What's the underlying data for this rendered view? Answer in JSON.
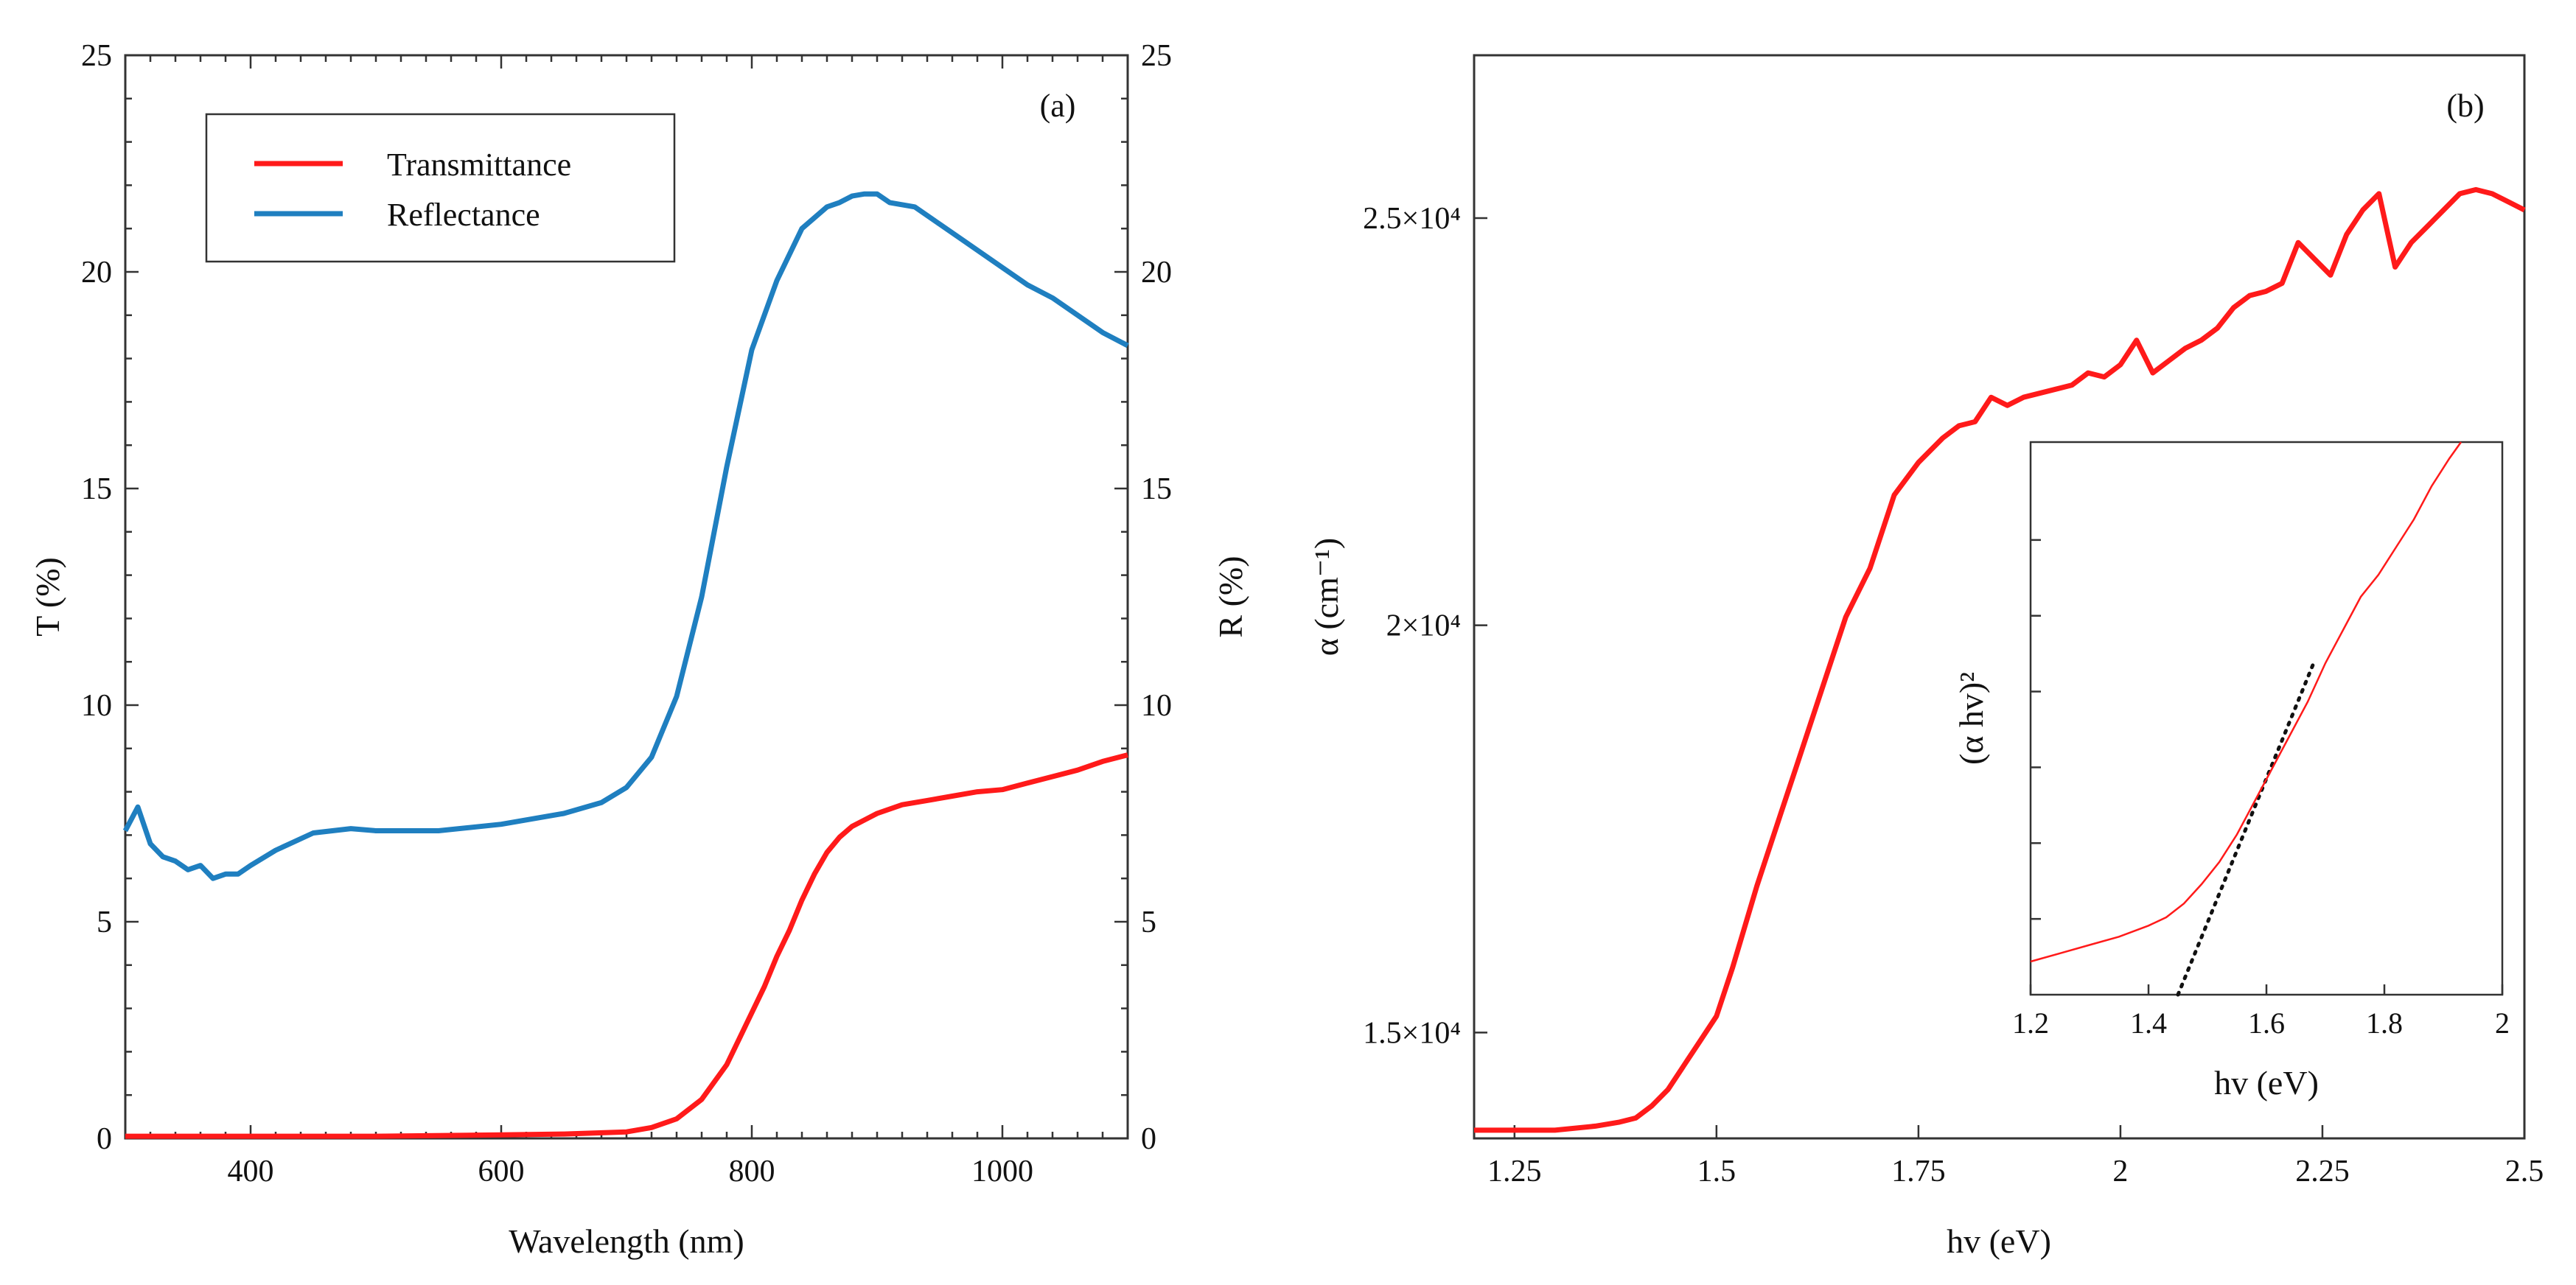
{
  "colors": {
    "transmittance": "#ff1a1a",
    "reflectance": "#1f7fc0",
    "frame": "#333333",
    "inset_fit": "#111111"
  },
  "chart_data": [
    {
      "id": "a",
      "type": "line",
      "panel_label": "(a)",
      "xlabel": "Wavelength (nm)",
      "ylabel_left": "T (%)",
      "ylabel_right": "R (%)",
      "xlim": [
        300,
        1100
      ],
      "ylim_left": [
        0,
        25
      ],
      "ylim_right": [
        0,
        25
      ],
      "xticks": [
        400,
        600,
        800,
        1000
      ],
      "yticks_left": [
        0,
        5,
        10,
        15,
        20,
        25
      ],
      "yticks_right": [
        0,
        5,
        10,
        15,
        20,
        25
      ],
      "legend": {
        "position": "top-left",
        "entries": [
          "Transmittance",
          "Reflectance"
        ]
      },
      "series": [
        {
          "name": "Transmittance",
          "axis": "left",
          "x": [
            300,
            400,
            500,
            600,
            650,
            700,
            720,
            740,
            760,
            780,
            790,
            800,
            810,
            820,
            830,
            840,
            850,
            860,
            870,
            880,
            890,
            900,
            920,
            940,
            960,
            980,
            1000,
            1020,
            1040,
            1060,
            1080,
            1100
          ],
          "y": [
            0.05,
            0.05,
            0.05,
            0.08,
            0.1,
            0.15,
            0.25,
            0.45,
            0.9,
            1.7,
            2.3,
            2.9,
            3.5,
            4.2,
            4.8,
            5.5,
            6.1,
            6.6,
            6.95,
            7.2,
            7.35,
            7.5,
            7.7,
            7.8,
            7.9,
            8.0,
            8.05,
            8.2,
            8.35,
            8.5,
            8.7,
            8.85
          ]
        },
        {
          "name": "Reflectance",
          "axis": "right",
          "x": [
            300,
            310,
            320,
            330,
            340,
            350,
            360,
            370,
            380,
            390,
            400,
            420,
            450,
            480,
            500,
            550,
            600,
            650,
            680,
            700,
            720,
            740,
            760,
            780,
            800,
            820,
            840,
            860,
            870,
            880,
            890,
            900,
            910,
            930,
            950,
            970,
            1000,
            1020,
            1040,
            1060,
            1080,
            1100
          ],
          "y": [
            7.1,
            7.65,
            6.8,
            6.5,
            6.4,
            6.2,
            6.3,
            6.0,
            6.1,
            6.1,
            6.3,
            6.65,
            7.05,
            7.15,
            7.1,
            7.1,
            7.25,
            7.5,
            7.75,
            8.1,
            8.8,
            10.2,
            12.5,
            15.5,
            18.2,
            19.8,
            21.0,
            21.5,
            21.6,
            21.75,
            21.8,
            21.8,
            21.6,
            21.5,
            21.1,
            20.7,
            20.1,
            19.7,
            19.4,
            19.0,
            18.6,
            18.3
          ]
        }
      ]
    },
    {
      "id": "b",
      "type": "line",
      "panel_label": "(b)",
      "xlabel": "hv (eV)",
      "ylabel": "α (cm⁻¹)",
      "xlim": [
        1.2,
        2.5
      ],
      "ylim": [
        13700,
        27000
      ],
      "xticks": [
        "1.25",
        "1.5",
        "1.75",
        "2",
        "2.25",
        "2.5"
      ],
      "yticks": [
        {
          "value": 15000,
          "label": "1.5×10⁴"
        },
        {
          "value": 20000,
          "label": "2×10⁴"
        },
        {
          "value": 25000,
          "label": "2.5×10⁴"
        }
      ],
      "series": [
        {
          "name": "α",
          "x": [
            1.2,
            1.3,
            1.35,
            1.38,
            1.4,
            1.42,
            1.44,
            1.46,
            1.48,
            1.5,
            1.52,
            1.55,
            1.58,
            1.6,
            1.63,
            1.66,
            1.69,
            1.72,
            1.75,
            1.78,
            1.8,
            1.82,
            1.84,
            1.86,
            1.88,
            1.9,
            1.92,
            1.94,
            1.96,
            1.98,
            2.0,
            2.02,
            2.04,
            2.06,
            2.08,
            2.1,
            2.12,
            2.14,
            2.16,
            2.18,
            2.2,
            2.22,
            2.24,
            2.26,
            2.28,
            2.3,
            2.32,
            2.34,
            2.36,
            2.38,
            2.4,
            2.42,
            2.44,
            2.46,
            2.48,
            2.5
          ],
          "y": [
            13800,
            13800,
            13850,
            13900,
            13950,
            14100,
            14300,
            14600,
            14900,
            15200,
            15800,
            16800,
            17700,
            18300,
            19200,
            20100,
            20700,
            21600,
            22000,
            22300,
            22450,
            22500,
            22800,
            22700,
            22800,
            22850,
            22900,
            22950,
            23100,
            23050,
            23200,
            23500,
            23100,
            23250,
            23400,
            23500,
            23650,
            23900,
            24050,
            24100,
            24200,
            24700,
            24500,
            24300,
            24800,
            25100,
            25300,
            24400,
            24700,
            24900,
            25100,
            25300,
            25350,
            25300,
            25200,
            25100
          ]
        }
      ],
      "inset": {
        "type": "line",
        "xlabel": "hv (eV)",
        "ylabel": "(α hv)²",
        "xlim": [
          1.2,
          2.0
        ],
        "ylim": [
          0,
          1
        ],
        "xticks": [
          "1.2",
          "1.4",
          "1.6",
          "1.8",
          "2"
        ],
        "series": [
          {
            "name": "(α hv)²",
            "x": [
              1.2,
              1.25,
              1.3,
              1.35,
              1.4,
              1.43,
              1.46,
              1.49,
              1.52,
              1.55,
              1.58,
              1.61,
              1.64,
              1.67,
              1.7,
              1.73,
              1.76,
              1.79,
              1.82,
              1.85,
              1.88,
              1.91,
              1.93
            ],
            "y": [
              0.06,
              0.075,
              0.09,
              0.105,
              0.125,
              0.14,
              0.165,
              0.2,
              0.24,
              0.29,
              0.35,
              0.41,
              0.47,
              0.53,
              0.6,
              0.66,
              0.72,
              0.76,
              0.81,
              0.86,
              0.92,
              0.97,
              1.0
            ]
          }
        ],
        "fit_line": {
          "x": [
            1.45,
            1.68
          ],
          "y": [
            0.0,
            0.6
          ],
          "intercept_eV": 1.45,
          "style": "dotted"
        }
      }
    }
  ]
}
